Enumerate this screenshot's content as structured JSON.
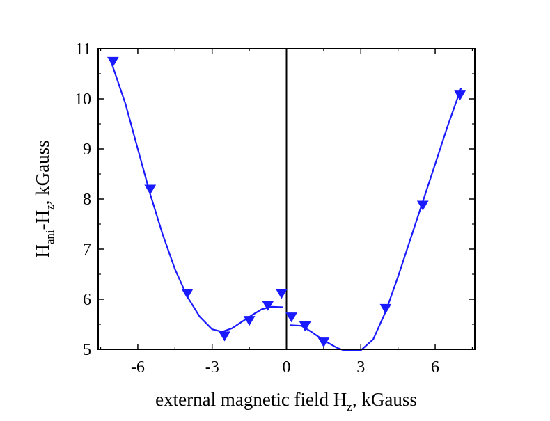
{
  "chart_data": {
    "type": "scatter",
    "xlabel": {
      "main": "external magnetic field H",
      "sub": "z",
      "rest": ", kGauss"
    },
    "ylabel": {
      "main": "H",
      "sub1": "ani",
      "mid": "-H",
      "sub2": "z",
      "rest": ", kGauss"
    },
    "xlim": [
      -7.6,
      7.6
    ],
    "ylim": [
      5,
      11
    ],
    "xticks": [
      -6,
      -3,
      0,
      3,
      6
    ],
    "yticks": [
      5,
      6,
      7,
      8,
      9,
      10,
      11
    ],
    "zero_line": true,
    "marker": "down-triangle",
    "color": "#1a1aff",
    "series": [
      {
        "points": [
          [
            -7.0,
            10.75
          ],
          [
            -5.5,
            8.2
          ],
          [
            -4.0,
            6.12
          ],
          [
            -2.5,
            5.27
          ],
          [
            -1.5,
            5.58
          ],
          [
            -0.75,
            5.88
          ],
          [
            -0.2,
            6.12
          ],
          [
            0.2,
            5.65
          ],
          [
            0.75,
            5.47
          ],
          [
            1.5,
            5.15
          ],
          [
            4.0,
            5.82
          ],
          [
            5.5,
            7.88
          ],
          [
            7.0,
            10.08
          ]
        ]
      }
    ],
    "fit_left": [
      [
        -7.05,
        10.7
      ],
      [
        -6.5,
        9.9
      ],
      [
        -6.0,
        9.0
      ],
      [
        -5.5,
        8.1
      ],
      [
        -5.0,
        7.3
      ],
      [
        -4.5,
        6.6
      ],
      [
        -4.0,
        6.05
      ],
      [
        -3.5,
        5.65
      ],
      [
        -3.0,
        5.4
      ],
      [
        -2.6,
        5.35
      ],
      [
        -2.2,
        5.42
      ],
      [
        -1.8,
        5.55
      ],
      [
        -1.4,
        5.68
      ],
      [
        -1.0,
        5.8
      ],
      [
        -0.6,
        5.85
      ],
      [
        -0.15,
        5.84
      ]
    ],
    "fit_right": [
      [
        0.15,
        5.48
      ],
      [
        0.6,
        5.47
      ],
      [
        1.0,
        5.35
      ],
      [
        1.5,
        5.18
      ],
      [
        2.0,
        5.04
      ],
      [
        2.3,
        4.98
      ],
      [
        3.0,
        4.98
      ],
      [
        3.5,
        5.2
      ],
      [
        4.0,
        5.75
      ],
      [
        4.5,
        6.45
      ],
      [
        5.0,
        7.2
      ],
      [
        5.5,
        7.95
      ],
      [
        6.0,
        8.7
      ],
      [
        6.5,
        9.45
      ],
      [
        7.05,
        10.22
      ]
    ]
  }
}
